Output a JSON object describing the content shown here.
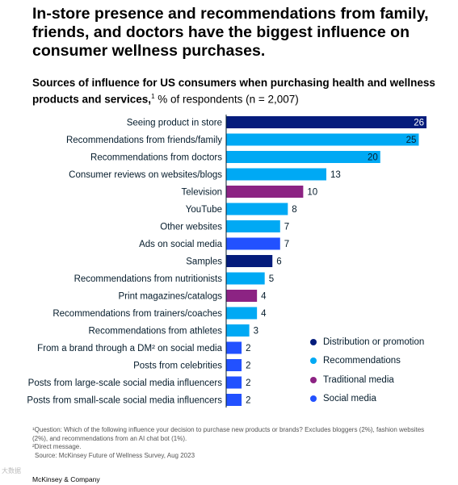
{
  "headline": "In-store presence and recommendations from family, friends, and doctors have the biggest influence on consumer wellness purchases.",
  "subtitle_bold": "Sources of influence for US consumers when purchasing health and wellness products and services,",
  "subtitle_sup": "1",
  "subtitle_rest": " % of respondents (n = 2,007)",
  "colors": {
    "Distribution or promotion": "#051c7c",
    "Recommendations": "#00a9f4",
    "Traditional media": "#8c2383",
    "Social media": "#2251ff"
  },
  "chart_data": {
    "type": "bar",
    "orientation": "horizontal",
    "categories": [
      "Seeing product in store",
      "Recommendations from friends/family",
      "Recommendations from doctors",
      "Consumer reviews on websites/blogs",
      "Television",
      "YouTube",
      "Other websites",
      "Ads on social media",
      "Samples",
      "Recommendations from nutritionists",
      "Print magazines/catalogs",
      "Recommendations from trainers/coaches",
      "Recommendations from athletes",
      "From a brand through a DM² on social media",
      "Posts from celebrities",
      "Posts from large-scale social media influencers",
      "Posts from small-scale social media influencers"
    ],
    "values": [
      26,
      25,
      20,
      13,
      10,
      8,
      7,
      7,
      6,
      5,
      4,
      4,
      3,
      2,
      2,
      2,
      2
    ],
    "groups": [
      "Distribution or promotion",
      "Recommendations",
      "Recommendations",
      "Recommendations",
      "Traditional media",
      "Recommendations",
      "Recommendations",
      "Social media",
      "Distribution or promotion",
      "Recommendations",
      "Traditional media",
      "Recommendations",
      "Recommendations",
      "Social media",
      "Social media",
      "Social media",
      "Social media"
    ],
    "xlim": [
      0,
      26
    ],
    "legend": [
      "Distribution or promotion",
      "Recommendations",
      "Traditional media",
      "Social media"
    ],
    "legend_position": "right"
  },
  "footnotes": {
    "note1": "¹Question: Which of the following influence your decision to purchase new products or brands? Excludes bloggers (2%), fashion websites (2%), and recommendations from an AI chat bot (1%).",
    "note2": "²Direct message.",
    "source": "Source: McKinsey Future of Wellness Survey, Aug 2023"
  },
  "brand": "McKinsey & Company",
  "watermark": "大数据"
}
